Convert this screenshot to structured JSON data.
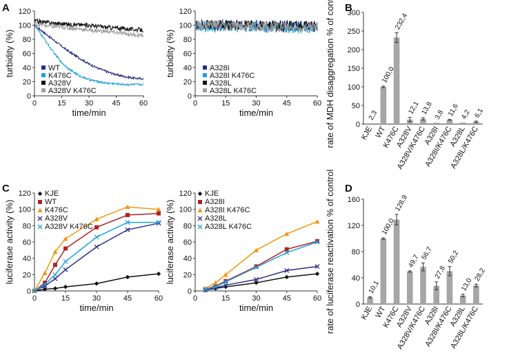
{
  "panels": [
    {
      "letter": "A"
    },
    {
      "letter": "B"
    },
    {
      "letter": "C"
    },
    {
      "letter": "D"
    }
  ],
  "chart_data": [
    {
      "id": "A1",
      "type": "line",
      "title": "",
      "xlabel": "time/min",
      "ylabel": "turbidity (%)",
      "xlim": [
        0,
        60
      ],
      "ylim": [
        0,
        120
      ],
      "xticks": [
        "0",
        "15",
        "30",
        "45",
        "60"
      ],
      "yticks": [
        "0",
        "20",
        "40",
        "60",
        "80",
        "100",
        "120"
      ],
      "legend": "bottom-left",
      "series": [
        {
          "name": "WT",
          "color": "#2b2d84",
          "noise": 1.5,
          "x": [
            0,
            5,
            10,
            15,
            20,
            25,
            30,
            35,
            40,
            45,
            50,
            55,
            60
          ],
          "values": [
            100,
            90,
            80,
            70,
            61,
            53,
            45,
            39,
            34,
            30,
            27,
            25,
            24
          ]
        },
        {
          "name": "K476C",
          "color": "#1ea0dc",
          "noise": 1.5,
          "x": [
            0,
            5,
            10,
            15,
            20,
            25,
            30,
            35,
            40,
            45,
            50,
            55,
            60
          ],
          "values": [
            100,
            82,
            63,
            47,
            36,
            28,
            23,
            20,
            18,
            17,
            16,
            16,
            16
          ]
        },
        {
          "name": "A328V",
          "color": "#111111",
          "noise": 3,
          "x": [
            0,
            10,
            20,
            30,
            40,
            50,
            60
          ],
          "values": [
            106,
            103,
            101,
            100,
            97,
            95,
            93
          ]
        },
        {
          "name": "A328V K476C",
          "color": "#a0a0a0",
          "noise": 3,
          "x": [
            0,
            10,
            20,
            30,
            40,
            50,
            60
          ],
          "values": [
            102,
            98,
            96,
            93,
            91,
            88,
            85
          ]
        }
      ]
    },
    {
      "id": "A2",
      "type": "line",
      "title": "",
      "xlabel": "time/min",
      "ylabel": "turbidity (%)",
      "xlim": [
        0,
        60
      ],
      "ylim": [
        0,
        120
      ],
      "xticks": [
        "0",
        "15",
        "30",
        "45",
        "60"
      ],
      "yticks": [
        "0",
        "20",
        "40",
        "60",
        "80",
        "100",
        "120"
      ],
      "legend": "bottom-left",
      "series": [
        {
          "name": "A328I",
          "color": "#2b2d84",
          "noise": 8,
          "x": [
            0,
            60
          ],
          "values": [
            100,
            98
          ]
        },
        {
          "name": "A328I K476C",
          "color": "#1ea0dc",
          "noise": 8,
          "x": [
            0,
            60
          ],
          "values": [
            99,
            96
          ]
        },
        {
          "name": "A328L",
          "color": "#111111",
          "noise": 7,
          "x": [
            0,
            60
          ],
          "values": [
            101,
            99
          ]
        },
        {
          "name": "A328L K476C",
          "color": "#a0a0a0",
          "noise": 7,
          "x": [
            0,
            60
          ],
          "values": [
            100,
            97
          ]
        }
      ]
    },
    {
      "id": "B",
      "type": "bar",
      "title": "",
      "xlabel": "",
      "ylabel": "rate of MDH disaggregation % of control",
      "ylim": [
        0,
        300
      ],
      "yticks": [
        "0",
        "50",
        "100",
        "150",
        "200",
        "250",
        "300"
      ],
      "categories": [
        "KJE",
        "WT",
        "K476C",
        "A328V",
        "A328V/K476C",
        "A328I",
        "A328I/K476C",
        "A328L",
        "A328L/K476C"
      ],
      "values": [
        2.3,
        100.0,
        232.4,
        12.1,
        13.8,
        3.8,
        11.6,
        4.2,
        6.1
      ],
      "errors": [
        0,
        2,
        13,
        6,
        3,
        0,
        1,
        0,
        2
      ],
      "value_labels": [
        "2,3",
        "100,0",
        "232,4",
        "12,1",
        "13,8",
        "3,8",
        "11,6",
        "4,2",
        "6,1"
      ]
    },
    {
      "id": "C1",
      "type": "line",
      "title": "",
      "xlabel": "time/min",
      "ylabel": "luciferase activity (%)",
      "xlim": [
        0,
        60
      ],
      "ylim": [
        0,
        120
      ],
      "xticks": [
        "0",
        "15",
        "30",
        "45",
        "60"
      ],
      "yticks": [
        "0",
        "20",
        "40",
        "60",
        "80",
        "100",
        "120"
      ],
      "legend": "top-left",
      "series": [
        {
          "name": "KJE",
          "color": "#111111",
          "marker": "diamond",
          "x": [
            0,
            5,
            10,
            15,
            30,
            45,
            60
          ],
          "values": [
            0,
            2,
            3,
            5,
            9,
            17,
            21
          ]
        },
        {
          "name": "WT",
          "color": "#b22222",
          "marker": "square",
          "x": [
            0,
            5,
            10,
            15,
            30,
            45,
            60
          ],
          "values": [
            0,
            10,
            32,
            52,
            78,
            93,
            95
          ]
        },
        {
          "name": "K476C",
          "color": "#f0960f",
          "marker": "triangle",
          "x": [
            0,
            5,
            10,
            15,
            30,
            45,
            60
          ],
          "values": [
            0,
            22,
            48,
            64,
            88,
            103,
            100
          ]
        },
        {
          "name": "A328V",
          "color": "#2b2d84",
          "marker": "x",
          "x": [
            0,
            5,
            10,
            15,
            30,
            45,
            60
          ],
          "values": [
            0,
            6,
            15,
            26,
            54,
            75,
            83
          ]
        },
        {
          "name": "A328V K476C",
          "color": "#1ea0dc",
          "marker": "x",
          "x": [
            0,
            5,
            10,
            15,
            30,
            45,
            60
          ],
          "values": [
            0,
            8,
            20,
            36,
            66,
            84,
            84
          ]
        }
      ]
    },
    {
      "id": "C2",
      "type": "line",
      "title": "",
      "xlabel": "time/min",
      "ylabel": "luciferase activity (%)",
      "xlim": [
        0,
        60
      ],
      "ylim": [
        0,
        120
      ],
      "xticks": [
        "0",
        "15",
        "30",
        "45",
        "60"
      ],
      "yticks": [
        "0",
        "20",
        "40",
        "60",
        "80",
        "100",
        "120"
      ],
      "legend": "top-left",
      "series": [
        {
          "name": "KJE",
          "color": "#111111",
          "marker": "diamond",
          "x": [
            5,
            10,
            15,
            30,
            45,
            60
          ],
          "values": [
            1,
            3,
            5,
            10,
            17,
            21
          ]
        },
        {
          "name": "A328I",
          "color": "#b22222",
          "marker": "square",
          "x": [
            5,
            10,
            15,
            30,
            45,
            60
          ],
          "values": [
            2,
            6,
            12,
            30,
            51,
            61
          ]
        },
        {
          "name": "A328I K476C",
          "color": "#f0960f",
          "marker": "triangle",
          "x": [
            5,
            10,
            15,
            30,
            45,
            60
          ],
          "values": [
            3,
            10,
            20,
            50,
            70,
            85
          ]
        },
        {
          "name": "A328L",
          "color": "#2b2d84",
          "marker": "x",
          "x": [
            5,
            10,
            15,
            30,
            45,
            60
          ],
          "values": [
            1,
            4,
            7,
            14,
            25,
            30
          ]
        },
        {
          "name": "A328L K476C",
          "color": "#1ea0dc",
          "marker": "x",
          "x": [
            5,
            10,
            15,
            30,
            45,
            60
          ],
          "values": [
            2,
            5,
            11,
            29,
            47,
            60
          ]
        }
      ]
    },
    {
      "id": "D",
      "type": "bar",
      "title": "",
      "xlabel": "",
      "ylabel": "rate of luciferase reactivation % of control",
      "ylim": [
        0,
        160
      ],
      "yticks": [
        "0",
        "40",
        "80",
        "120",
        "160"
      ],
      "categories": [
        "KJE",
        "WT",
        "K476C",
        "A328V",
        "A328V/K476C",
        "A328I",
        "A328I/K476C",
        "A328L",
        "A328L/K476C"
      ],
      "values": [
        10.1,
        100.0,
        128.9,
        49.7,
        56.7,
        27.8,
        50.2,
        13.0,
        28.2
      ],
      "errors": [
        1,
        1,
        8,
        1,
        6,
        6,
        7,
        2,
        2
      ],
      "value_labels": [
        "10,1",
        "100,0",
        "128,9",
        "49,7",
        "56,7",
        "27,8",
        "50,2",
        "13,0",
        "28,2"
      ]
    }
  ]
}
